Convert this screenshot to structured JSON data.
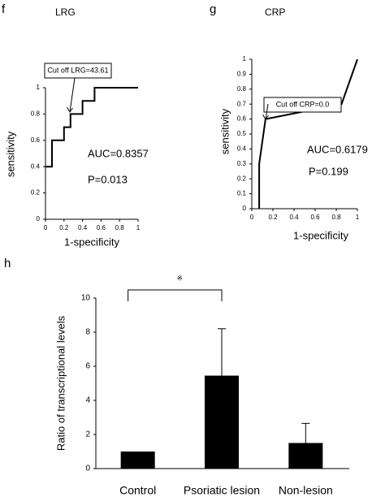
{
  "chart_data": [
    {
      "type": "line",
      "panel_label": "f",
      "title": "LRG",
      "x_label": "1-specificity",
      "y_label": "sensitivity",
      "x": [
        0,
        0.07,
        0.07,
        0.2,
        0.2,
        0.27,
        0.27,
        0.4,
        0.4,
        0.53,
        0.53,
        1
      ],
      "values": [
        0.4,
        0.4,
        0.6,
        0.6,
        0.7,
        0.7,
        0.8,
        0.8,
        0.9,
        0.9,
        1,
        1
      ],
      "color": "#000000",
      "xlim": [
        0,
        1
      ],
      "ylim": [
        0,
        1
      ],
      "xticks": [
        0,
        0.2,
        0.4,
        0.6,
        0.8,
        1
      ],
      "yticks": [
        0,
        0.2,
        0.4,
        0.6,
        0.8,
        1
      ],
      "annotation": "Cut off LRG=43.61",
      "auc": "AUC=0.8357",
      "p_value": "P=0.013"
    },
    {
      "type": "line",
      "panel_label": "g",
      "title": "CRP",
      "x_label": "1-specificity",
      "y_label": "sensitivity",
      "x": [
        0.07,
        0.07,
        0.13,
        0.85,
        1
      ],
      "values": [
        0,
        0.3,
        0.6,
        0.7,
        1
      ],
      "color": "#000000",
      "xlim": [
        0,
        1
      ],
      "ylim": [
        0,
        1
      ],
      "xticks": [
        0,
        0.2,
        0.4,
        0.6,
        0.8,
        1
      ],
      "yticks": [
        0,
        0.1,
        0.2,
        0.3,
        0.4,
        0.5,
        0.6,
        0.7,
        0.8,
        0.9,
        1
      ],
      "annotation": "Cut off CRP=0.0",
      "auc": "AUC=0.6179",
      "p_value": "P=0.199"
    },
    {
      "type": "bar",
      "panel_label": "h",
      "y_label": "Ratio of transcriptional levels",
      "categories": [
        "Control",
        "Psoriatic lesion",
        "Non-lesion"
      ],
      "values": [
        1,
        5.45,
        1.5
      ],
      "errors": [
        0,
        2.75,
        1.15
      ],
      "color": "#000000",
      "ylim": [
        0,
        10
      ],
      "yticks": [
        0,
        2,
        4,
        6,
        8,
        10
      ],
      "significance": "※"
    }
  ]
}
